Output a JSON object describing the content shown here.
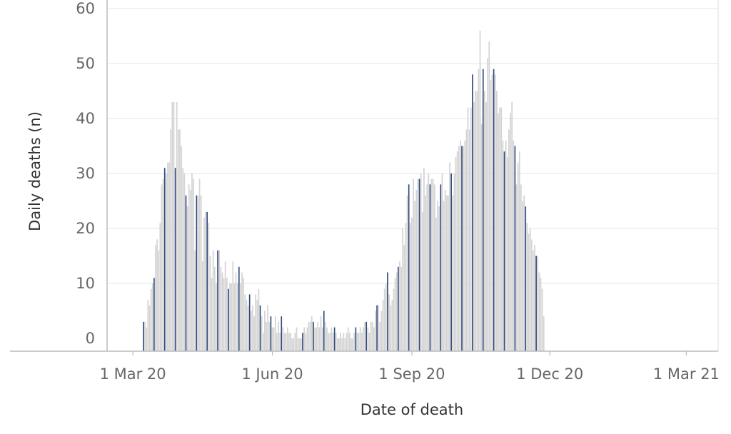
{
  "chart_data": {
    "type": "bar",
    "title": "",
    "xlabel": "Date of death",
    "ylabel": "Daily deaths (n)",
    "x_range": [
      "2020-02-13",
      "2021-03-22"
    ],
    "ylim": [
      -2,
      60
    ],
    "y_ticks": [
      0,
      10,
      20,
      30,
      40,
      50,
      60
    ],
    "x_ticks": [
      {
        "date": "2020-03-01",
        "label": "1 Mar 20"
      },
      {
        "date": "2020-06-01",
        "label": "1 Jun 20"
      },
      {
        "date": "2020-09-01",
        "label": "1 Sep 20"
      },
      {
        "date": "2020-12-01",
        "label": "1 Dec 20"
      },
      {
        "date": "2021-03-01",
        "label": "1 Mar 21"
      }
    ],
    "grid": true,
    "start_date": "2020-03-08",
    "highlight_interval_days": 7,
    "colors": {
      "bar": "#d4d4d4",
      "highlight": "#2e4a7d",
      "grid": "#ebebeb",
      "axis": "#bbbbbb"
    },
    "values": [
      3,
      3,
      2,
      7,
      6,
      9,
      10,
      11,
      17,
      18,
      16,
      21,
      28,
      29,
      31,
      30,
      32,
      32,
      38,
      43,
      43,
      31,
      43,
      38,
      38,
      35,
      31,
      30,
      26,
      24,
      28,
      27,
      30,
      29,
      16,
      26,
      26,
      29,
      26,
      14,
      22,
      23,
      23,
      21,
      15,
      11,
      16,
      13,
      10,
      16,
      16,
      13,
      12,
      11,
      14,
      11,
      9,
      10,
      10,
      14,
      10,
      12,
      10,
      13,
      10,
      12,
      11,
      8,
      7,
      6,
      8,
      5,
      6,
      4,
      8,
      7,
      9,
      6,
      4,
      1,
      5,
      3,
      6,
      3,
      4,
      2,
      2,
      4,
      1,
      3,
      1,
      4,
      2,
      1,
      1,
      2,
      1,
      1,
      0,
      0,
      1,
      2,
      0,
      0,
      0,
      1,
      2,
      1,
      2,
      3,
      3,
      4,
      3,
      2,
      2,
      3,
      2,
      4,
      2,
      5,
      3,
      2,
      1,
      1,
      2,
      1,
      2,
      1,
      0,
      0,
      1,
      0,
      1,
      0,
      1,
      2,
      1,
      0,
      0,
      1,
      2,
      1,
      1,
      2,
      1,
      2,
      3,
      3,
      2,
      1,
      3,
      3,
      2,
      5,
      6,
      6,
      3,
      5,
      7,
      9,
      10,
      12,
      8,
      6,
      7,
      9,
      11,
      12,
      13,
      14,
      13,
      20,
      17,
      21,
      26,
      28,
      21,
      22,
      29,
      25,
      27,
      29,
      29,
      30,
      23,
      31,
      26,
      28,
      30,
      28,
      29,
      29,
      28,
      22,
      25,
      24,
      28,
      30,
      25,
      27,
      26,
      26,
      32,
      30,
      26,
      30,
      33,
      34,
      35,
      36,
      35,
      35,
      36,
      38,
      42,
      38,
      42,
      48,
      43,
      45,
      45,
      49,
      56,
      39,
      49,
      45,
      43,
      51,
      54,
      47,
      48,
      49,
      48,
      45,
      41,
      42,
      42,
      36,
      34,
      36,
      33,
      38,
      41,
      43,
      36,
      35,
      28,
      32,
      34,
      28,
      25,
      26,
      24,
      21,
      19,
      20,
      18,
      16,
      17,
      15,
      15,
      12,
      11,
      9,
      4
    ]
  }
}
